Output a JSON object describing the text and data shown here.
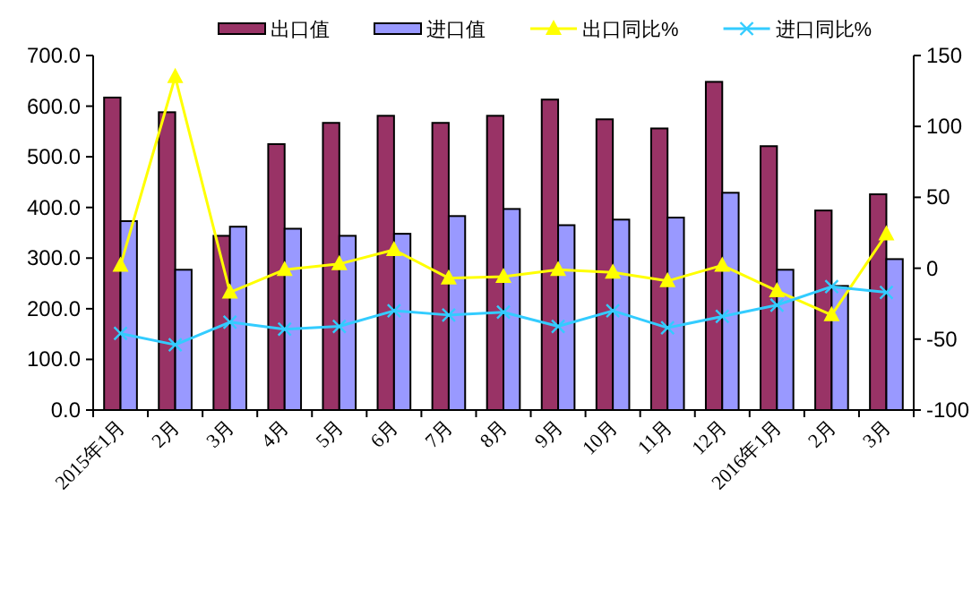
{
  "chart_data": {
    "type": "bar",
    "categories": [
      "2015年1月",
      "2月",
      "3月",
      "4月",
      "5月",
      "6月",
      "7月",
      "8月",
      "9月",
      "10月",
      "11月",
      "12月",
      "2016年1月",
      "2月",
      "3月"
    ],
    "series": [
      {
        "name": "出口值",
        "color": "#993366",
        "values": [
          617,
          588,
          344,
          525,
          567,
          581,
          567,
          581,
          613,
          574,
          556,
          648,
          521,
          394,
          426
        ]
      },
      {
        "name": "进口值",
        "color": "#9999ff",
        "values": [
          373,
          277,
          362,
          358,
          344,
          348,
          383,
          397,
          365,
          376,
          380,
          429,
          277,
          245,
          298
        ]
      },
      {
        "name": "出口同比%",
        "type": "line",
        "axis": "y2",
        "color": "#ffff00",
        "marker": "triangle",
        "values": [
          2,
          135,
          -17,
          -1,
          3,
          13,
          -7,
          -6,
          -1,
          -3,
          -9,
          2,
          -16,
          -33,
          24
        ]
      },
      {
        "name": "进口同比%",
        "type": "line",
        "axis": "y2",
        "color": "#33ccff",
        "marker": "cross",
        "values": [
          -46,
          -54,
          -38,
          -43,
          -41,
          -30,
          -33,
          -31,
          -41,
          -30,
          -42,
          -34,
          -26,
          -13,
          -17
        ]
      }
    ],
    "ylim": [
      0,
      700
    ],
    "yticks": [
      {
        "value": 0,
        "label": "0.0"
      },
      {
        "value": 100,
        "label": "100.0"
      },
      {
        "value": 200,
        "label": "200.0"
      },
      {
        "value": 300,
        "label": "300.0"
      },
      {
        "value": 400,
        "label": "400.0"
      },
      {
        "value": 500,
        "label": "500.0"
      },
      {
        "value": 600,
        "label": "600.0"
      },
      {
        "value": 700,
        "label": "700.0"
      }
    ],
    "y2lim": [
      -100,
      150
    ],
    "y2ticks": [
      -100,
      -50,
      0,
      50,
      100,
      150
    ],
    "legend": "top"
  }
}
